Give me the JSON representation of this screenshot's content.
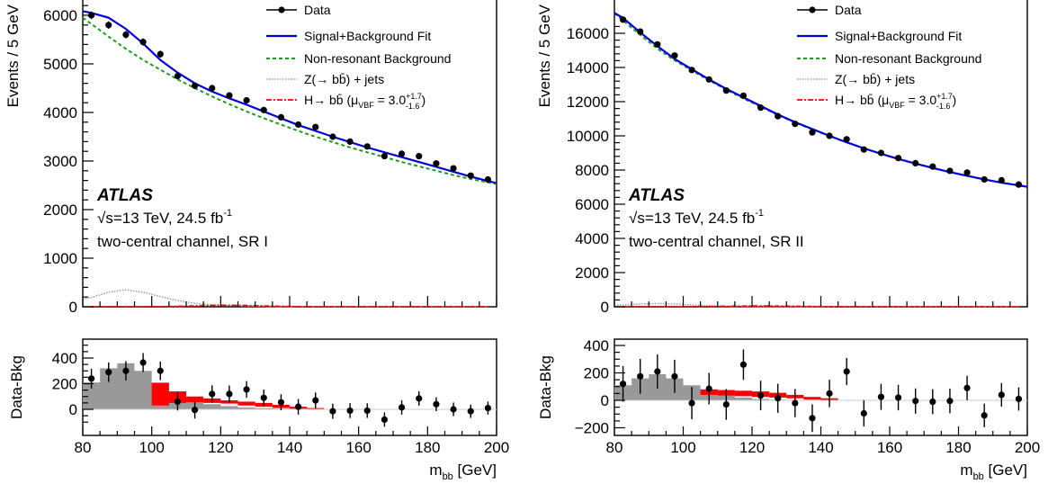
{
  "chart_data": [
    {
      "type": "scatter",
      "panel": "left",
      "ylabel": "Events / 5 GeV",
      "ratio_ylabel": "Data-Bkg",
      "xlabel_main": "m",
      "xlabel_sub": "bb",
      "xlabel_unit": "[GeV]",
      "xlim": [
        80,
        200
      ],
      "ylim": [
        0,
        6200
      ],
      "ratio_ylim": [
        -150,
        550
      ],
      "x_ticks": [
        "80",
        "100",
        "120",
        "140",
        "160",
        "180",
        "200"
      ],
      "y_ticks": [
        "0",
        "1000",
        "2000",
        "3000",
        "4000",
        "5000",
        "6000"
      ],
      "ratio_y_ticks": [
        "0",
        "200",
        "400"
      ],
      "ratio_y_tick_values": [
        0,
        200,
        400
      ],
      "atlas": "ATLAS",
      "energy_line": "√s=13 TeV, 24.5 fb",
      "energy_sup": "-1",
      "channel": "two-central channel, SR I",
      "legend": {
        "data": "Data",
        "fit": "Signal+Background Fit",
        "bkg": "Non-resonant Background",
        "z": "Z(→ bb̄) + jets",
        "h_prefix": "H→ bb̄ (μ",
        "h_sub": "VBF",
        "h_mid": " =  3.0",
        "h_sup": "+1.7",
        "h_low": "-1.6",
        "h_end": ")"
      },
      "x": [
        82.5,
        87.5,
        92.5,
        97.5,
        102.5,
        107.5,
        112.5,
        117.5,
        122.5,
        127.5,
        132.5,
        137.5,
        142.5,
        147.5,
        152.5,
        157.5,
        162.5,
        167.5,
        172.5,
        177.5,
        182.5,
        187.5,
        192.5,
        197.5
      ],
      "series": [
        {
          "name": "Data",
          "values": [
            6000,
            5800,
            5600,
            5450,
            5200,
            4750,
            4550,
            4500,
            4350,
            4250,
            4050,
            3900,
            3750,
            3700,
            3500,
            3400,
            3300,
            3100,
            3150,
            3100,
            2950,
            2850,
            2700,
            2620
          ],
          "errors": [
            77,
            76,
            75,
            74,
            72,
            69,
            67,
            67,
            66,
            65,
            64,
            62,
            61,
            61,
            59,
            58,
            57,
            56,
            56,
            56,
            54,
            53,
            52,
            51
          ]
        },
        {
          "name": "Signal+Background Fit",
          "values": [
            6050,
            5950,
            5720,
            5420,
            5080,
            4820,
            4600,
            4430,
            4290,
            4160,
            4020,
            3880,
            3740,
            3620,
            3500,
            3390,
            3280,
            3180,
            3080,
            2980,
            2880,
            2780,
            2680,
            2590
          ]
        },
        {
          "name": "Non-resonant Background",
          "values": [
            5820,
            5560,
            5310,
            5080,
            4880,
            4680,
            4500,
            4330,
            4170,
            4020,
            3880,
            3750,
            3620,
            3500,
            3390,
            3280,
            3180,
            3080,
            2980,
            2890,
            2800,
            2710,
            2630,
            2560
          ]
        },
        {
          "name": "Z(→ bb̄) + jets",
          "values": [
            190,
            300,
            350,
            300,
            210,
            130,
            70,
            40,
            25,
            15,
            10,
            5,
            5,
            0,
            0,
            0,
            0,
            0,
            0,
            0,
            0,
            0,
            0,
            0
          ]
        },
        {
          "name": "H→ bb̄",
          "values": [
            0,
            0,
            0,
            0,
            2,
            8,
            18,
            28,
            30,
            25,
            15,
            8,
            3,
            0,
            0,
            0,
            0,
            0,
            0,
            0,
            0,
            0,
            0,
            0
          ]
        }
      ],
      "ratio_points": [
        240,
        290,
        300,
        365,
        300,
        60,
        -5,
        120,
        120,
        155,
        90,
        55,
        20,
        70,
        -15,
        -10,
        -10,
        -80,
        15,
        85,
        40,
        0,
        -15,
        10
      ],
      "ratio_errors": [
        77,
        76,
        75,
        74,
        72,
        69,
        67,
        67,
        66,
        65,
        64,
        62,
        61,
        61,
        59,
        58,
        57,
        56,
        56,
        56,
        54,
        53,
        52,
        51
      ],
      "ratio_z": [
        210,
        320,
        360,
        300,
        210,
        130,
        70,
        40,
        25,
        15,
        10,
        5,
        5,
        0,
        0,
        0,
        0,
        0,
        0,
        0,
        0,
        0,
        0,
        0
      ],
      "ratio_h_bins": [
        [
          100,
          105,
          30,
          205
        ],
        [
          105,
          110,
          50,
          140
        ],
        [
          110,
          115,
          55,
          100
        ],
        [
          115,
          120,
          50,
          85
        ],
        [
          120,
          125,
          45,
          70
        ],
        [
          125,
          130,
          30,
          60
        ],
        [
          130,
          135,
          20,
          50
        ],
        [
          135,
          140,
          10,
          35
        ],
        [
          140,
          145,
          5,
          20
        ],
        [
          145,
          150,
          3,
          10
        ]
      ]
    },
    {
      "type": "scatter",
      "panel": "right",
      "ylabel": "Events / 5 GeV",
      "ratio_ylabel": "Data-Bkg",
      "xlabel_main": "m",
      "xlabel_sub": "bb",
      "xlabel_unit": "[GeV]",
      "xlim": [
        80,
        200
      ],
      "ylim": [
        0,
        18000
      ],
      "ratio_ylim": [
        -250,
        450
      ],
      "x_ticks": [
        "80",
        "100",
        "120",
        "140",
        "160",
        "180",
        "200"
      ],
      "y_ticks": [
        "0",
        "2000",
        "4000",
        "6000",
        "8000",
        "10000",
        "12000",
        "14000",
        "16000"
      ],
      "ratio_y_ticks": [
        "−200",
        "0",
        "200",
        "400"
      ],
      "ratio_y_tick_values": [
        -200,
        0,
        200,
        400
      ],
      "atlas": "ATLAS",
      "energy_line": "√s=13 TeV, 24.5 fb",
      "energy_sup": "-1",
      "channel": "two-central channel, SR II",
      "legend": {
        "data": "Data",
        "fit": "Signal+Background Fit",
        "bkg": "Non-resonant Background",
        "z": "Z(→ bb̄) + jets",
        "h_prefix": "H→ bb̄ (μ",
        "h_sub": "VBF",
        "h_mid": " =  3.0",
        "h_sup": "+1.7",
        "h_low": "-1.6",
        "h_end": ")"
      },
      "x": [
        82.5,
        87.5,
        92.5,
        97.5,
        102.5,
        107.5,
        112.5,
        117.5,
        122.5,
        127.5,
        132.5,
        137.5,
        142.5,
        147.5,
        152.5,
        157.5,
        162.5,
        167.5,
        172.5,
        177.5,
        182.5,
        187.5,
        192.5,
        197.5
      ],
      "series": [
        {
          "name": "Data",
          "values": [
            16800,
            16100,
            15350,
            14700,
            13850,
            13300,
            12650,
            12350,
            11650,
            11150,
            10700,
            10200,
            10000,
            9800,
            9200,
            9000,
            8700,
            8400,
            8200,
            7950,
            7850,
            7450,
            7400,
            7150
          ],
          "errors": [
            130,
            127,
            124,
            121,
            118,
            115,
            112,
            111,
            108,
            106,
            103,
            101,
            100,
            99,
            96,
            95,
            93,
            92,
            91,
            89,
            89,
            86,
            86,
            85
          ]
        },
        {
          "name": "Signal+Background Fit",
          "values": [
            16900,
            16050,
            15250,
            14500,
            13900,
            13300,
            12750,
            12250,
            11750,
            11250,
            10800,
            10400,
            10000,
            9620,
            9270,
            8950,
            8650,
            8380,
            8120,
            7880,
            7660,
            7450,
            7260,
            7100
          ]
        },
        {
          "name": "Non-resonant Background",
          "values": [
            16750,
            15900,
            15100,
            14420,
            13820,
            13250,
            12700,
            12190,
            11700,
            11220,
            10780,
            10380,
            9990,
            9620,
            9270,
            8950,
            8650,
            8380,
            8120,
            7880,
            7660,
            7450,
            7260,
            7100
          ]
        },
        {
          "name": "Z(→ bb̄) + jets",
          "values": [
            110,
            160,
            190,
            160,
            110,
            70,
            40,
            20,
            10,
            5,
            0,
            0,
            0,
            0,
            0,
            0,
            0,
            0,
            0,
            0,
            0,
            0,
            0,
            0
          ]
        },
        {
          "name": "H→ bb̄",
          "values": [
            0,
            0,
            0,
            0,
            2,
            10,
            25,
            40,
            45,
            40,
            28,
            15,
            5,
            0,
            0,
            0,
            0,
            0,
            0,
            0,
            0,
            0,
            0,
            0
          ]
        }
      ],
      "ratio_points": [
        120,
        175,
        210,
        175,
        -20,
        85,
        -30,
        260,
        35,
        15,
        -20,
        -130,
        50,
        210,
        -95,
        25,
        20,
        -5,
        -10,
        -5,
        90,
        -110,
        40,
        10
      ],
      "ratio_errors": [
        130,
        127,
        124,
        121,
        118,
        115,
        112,
        111,
        108,
        106,
        103,
        101,
        100,
        99,
        96,
        95,
        93,
        92,
        91,
        89,
        89,
        86,
        86,
        85
      ],
      "ratio_z": [
        110,
        160,
        190,
        160,
        110,
        70,
        40,
        20,
        10,
        5,
        0,
        0,
        0,
        0,
        0,
        0,
        0,
        0,
        0,
        0,
        0,
        0,
        0,
        0
      ],
      "ratio_h_bins": [
        [
          105,
          110,
          40,
          80
        ],
        [
          110,
          115,
          35,
          75
        ],
        [
          115,
          120,
          30,
          70
        ],
        [
          120,
          125,
          25,
          65
        ],
        [
          125,
          130,
          20,
          55
        ],
        [
          130,
          135,
          15,
          40
        ],
        [
          135,
          140,
          5,
          25
        ],
        [
          140,
          145,
          3,
          15
        ]
      ]
    }
  ]
}
